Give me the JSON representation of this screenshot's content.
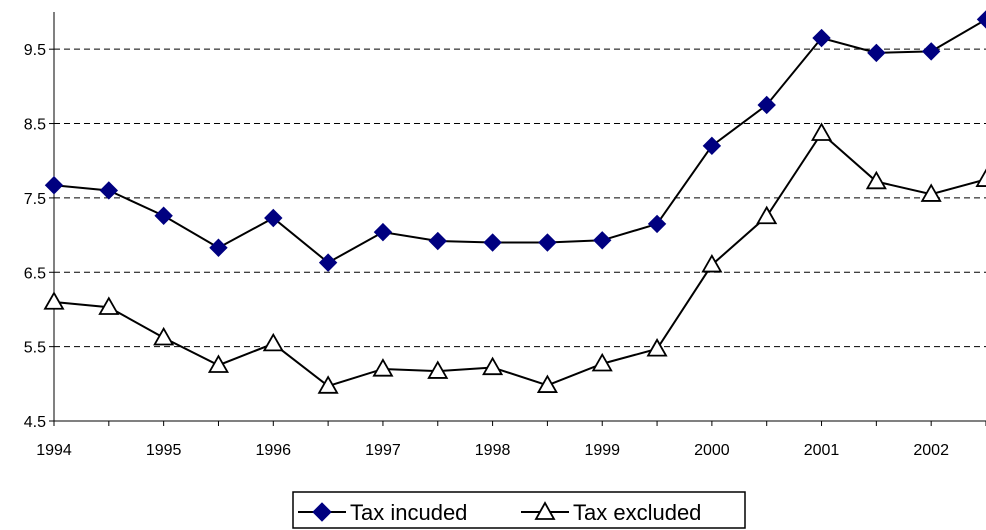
{
  "chart_data": {
    "type": "line",
    "title": "",
    "xlabel": "",
    "ylabel": "",
    "ylim": [
      4.5,
      10.0
    ],
    "yticks": [
      "4.5",
      "5.5",
      "6.5",
      "7.5",
      "8.5",
      "9.5"
    ],
    "xticks": [
      "1994",
      "1995",
      "1996",
      "1997",
      "1998",
      "1999",
      "2000",
      "2001",
      "2002"
    ],
    "grid": "horizontal-dashed",
    "legend_position": "bottom",
    "x": [
      1994,
      1994.5,
      1995,
      1995.5,
      1996,
      1996.5,
      1997,
      1997.5,
      1998,
      1998.5,
      1999,
      1999.5,
      2000,
      2000.5,
      2001,
      2001.5,
      2002,
      2002.5
    ],
    "series": [
      {
        "name": "Tax incuded",
        "marker": "diamond",
        "color": "#000080",
        "values": [
          7.67,
          7.6,
          7.26,
          6.83,
          7.23,
          6.63,
          7.04,
          6.92,
          6.9,
          6.9,
          6.93,
          7.15,
          8.2,
          8.75,
          9.65,
          9.45,
          9.47,
          9.9
        ]
      },
      {
        "name": "Tax excluded",
        "marker": "triangle",
        "color": "#ffffff",
        "values": [
          6.1,
          6.03,
          5.62,
          5.25,
          5.54,
          4.97,
          5.2,
          5.17,
          5.22,
          4.98,
          5.27,
          5.47,
          6.6,
          7.25,
          8.37,
          7.72,
          7.55,
          7.75
        ]
      }
    ]
  }
}
